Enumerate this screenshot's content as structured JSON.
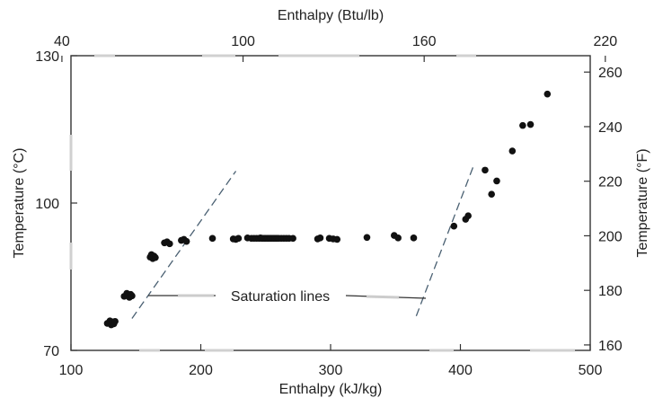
{
  "chart_data": {
    "type": "scatter",
    "title": "",
    "xlabel": "Enthalpy (kJ/kg)",
    "ylabel": "Temperature (°C)",
    "x2label": "Enthalpy (Btu/lb)",
    "y2label": "Temperature (°F)",
    "xlim": [
      100,
      500
    ],
    "ylim": [
      70,
      130
    ],
    "x2lim": [
      43,
      215
    ],
    "y2lim": [
      158,
      266
    ],
    "xticks": [
      "100",
      "200",
      "300",
      "400",
      "500"
    ],
    "yticks": [
      "70",
      "100",
      "130"
    ],
    "x2ticks": [
      "40",
      "100",
      "160",
      "220"
    ],
    "y2ticks": [
      "160",
      "180",
      "200",
      "220",
      "240",
      "260"
    ],
    "grid": false,
    "annotation": "Saturation lines",
    "series": [
      {
        "x": [
          128,
          130,
          131,
          132,
          133,
          134,
          141,
          143,
          145,
          146,
          147,
          161,
          162,
          163,
          164,
          165,
          172,
          174,
          176,
          185,
          187,
          189,
          209,
          225,
          227,
          229,
          236,
          239,
          241,
          243,
          245,
          246,
          247,
          248,
          249,
          250,
          251,
          252,
          253,
          254,
          255,
          256,
          257,
          258,
          259,
          260,
          262,
          264,
          266,
          268,
          271,
          290,
          292,
          299,
          302,
          305,
          328,
          349,
          352,
          364,
          395,
          404,
          406,
          419,
          424,
          428,
          440,
          448,
          454,
          467
        ],
        "y": [
          75.5,
          76.0,
          75.2,
          75.8,
          75.4,
          75.9,
          81.0,
          81.6,
          80.8,
          81.4,
          81.1,
          89.0,
          89.5,
          88.7,
          89.2,
          88.9,
          91.9,
          92.1,
          91.7,
          92.4,
          92.6,
          92.2,
          92.8,
          92.7,
          92.6,
          92.8,
          92.9,
          92.8,
          92.8,
          92.8,
          92.8,
          92.9,
          92.8,
          92.8,
          92.8,
          92.8,
          92.8,
          92.8,
          92.8,
          92.8,
          92.8,
          92.8,
          92.8,
          92.8,
          92.8,
          92.8,
          92.8,
          92.8,
          92.8,
          92.8,
          92.8,
          92.7,
          92.9,
          92.8,
          92.7,
          92.6,
          93.0,
          93.4,
          92.9,
          92.9,
          95.3,
          96.7,
          97.4,
          106.7,
          101.8,
          104.5,
          110.6,
          115.8,
          116.0,
          122.2
        ]
      }
    ],
    "saturation_lines": [
      {
        "x": [
          147,
          227
        ],
        "y": [
          76.5,
          106.5
        ]
      },
      {
        "x": [
          366,
          410
        ],
        "y": [
          77.0,
          107.5
        ]
      }
    ]
  }
}
